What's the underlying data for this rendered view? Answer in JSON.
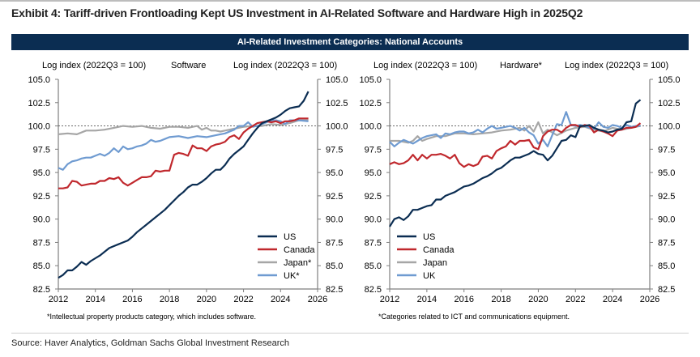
{
  "page": {
    "exhibit_title": "Exhibit 4: Tariff-driven Frontloading Kept US Investment in AI-Related Software and Hardware High in 2025Q2",
    "banner": "AI-Related Investment Categories: National Accounts",
    "source": "Source: Haver Analytics, Goldman Sachs Global Investment Research"
  },
  "colors": {
    "US": "#0b2d52",
    "Canada": "#c0282d",
    "Japan": "#a6a6a6",
    "UK": "#6f9bd1",
    "banner": "#0b2d52"
  },
  "chart_data": [
    {
      "type": "line",
      "title": "Software",
      "ylabel_left": "Log index (2022Q3 = 100)",
      "ylabel_right": "Log index (2022Q3 = 100)",
      "xlabel": "",
      "xlim": [
        2012,
        2026
      ],
      "ylim": [
        82.5,
        105.0
      ],
      "xticks": [
        "2012",
        "2014",
        "2016",
        "2018",
        "2020",
        "2022",
        "2024",
        "2026"
      ],
      "yticks": [
        "82.5",
        "85.0",
        "87.5",
        "90.0",
        "92.5",
        "95.0",
        "97.5",
        "100.0",
        "102.5",
        "105.0"
      ],
      "reference_line": 100.0,
      "legend_position": "bottom-right",
      "footnote": "*Intellectual property products category, which includes software.",
      "series": [
        {
          "name": "US",
          "legend_label": "US",
          "color": "#0b2d52",
          "x": [
            2012.0,
            2012.25,
            2012.5,
            2012.75,
            2013.0,
            2013.25,
            2013.5,
            2013.75,
            2014.0,
            2014.25,
            2014.5,
            2014.75,
            2015.0,
            2015.25,
            2015.5,
            2015.75,
            2016.0,
            2016.25,
            2016.5,
            2016.75,
            2017.0,
            2017.25,
            2017.5,
            2017.75,
            2018.0,
            2018.25,
            2018.5,
            2018.75,
            2019.0,
            2019.25,
            2019.5,
            2019.75,
            2020.0,
            2020.25,
            2020.5,
            2020.75,
            2021.0,
            2021.25,
            2021.5,
            2021.75,
            2022.0,
            2022.25,
            2022.5,
            2022.75,
            2023.0,
            2023.25,
            2023.5,
            2023.75,
            2024.0,
            2024.25,
            2024.5,
            2024.75,
            2025.0,
            2025.25,
            2025.5
          ],
          "y": [
            83.7,
            84.0,
            84.5,
            84.5,
            84.9,
            85.4,
            85.1,
            85.5,
            85.8,
            86.1,
            86.5,
            86.9,
            87.1,
            87.3,
            87.5,
            87.7,
            88.1,
            88.6,
            89.0,
            89.4,
            89.8,
            90.2,
            90.6,
            91.0,
            91.5,
            92.0,
            92.5,
            92.9,
            93.4,
            93.7,
            93.7,
            94.0,
            94.4,
            94.9,
            95.3,
            95.3,
            95.8,
            96.5,
            97.0,
            97.4,
            97.8,
            98.5,
            99.2,
            99.8,
            100.3,
            100.5,
            100.7,
            100.9,
            101.2,
            101.6,
            101.9,
            102.0,
            102.1,
            102.7,
            103.7
          ]
        },
        {
          "name": "Canada",
          "legend_label": "Canada",
          "color": "#c0282d",
          "x": [
            2012.0,
            2012.25,
            2012.5,
            2012.75,
            2013.0,
            2013.25,
            2013.5,
            2013.75,
            2014.0,
            2014.25,
            2014.5,
            2014.75,
            2015.0,
            2015.25,
            2015.5,
            2015.75,
            2016.0,
            2016.25,
            2016.5,
            2016.75,
            2017.0,
            2017.25,
            2017.5,
            2017.75,
            2018.0,
            2018.25,
            2018.5,
            2018.75,
            2019.0,
            2019.25,
            2019.5,
            2019.75,
            2020.0,
            2020.25,
            2020.5,
            2020.75,
            2021.0,
            2021.25,
            2021.5,
            2021.75,
            2022.0,
            2022.25,
            2022.5,
            2022.75,
            2023.0,
            2023.25,
            2023.5,
            2023.75,
            2024.0,
            2024.25,
            2024.5,
            2024.75,
            2025.0,
            2025.25,
            2025.5
          ],
          "y": [
            93.3,
            93.3,
            93.4,
            94.1,
            94.0,
            93.6,
            93.7,
            93.8,
            93.8,
            94.1,
            94.1,
            94.4,
            94.3,
            94.5,
            93.9,
            93.6,
            93.9,
            94.2,
            94.5,
            94.5,
            94.6,
            95.2,
            95.1,
            95.2,
            95.2,
            96.9,
            97.1,
            97.0,
            96.8,
            97.9,
            97.6,
            97.6,
            97.3,
            97.8,
            98.0,
            98.1,
            98.3,
            98.8,
            99.0,
            98.6,
            99.3,
            99.7,
            100.0,
            100.3,
            100.4,
            100.5,
            100.4,
            100.5,
            100.3,
            100.5,
            100.5,
            100.6,
            100.8,
            100.8,
            100.8
          ]
        },
        {
          "name": "Japan",
          "legend_label": "Japan*",
          "color": "#a6a6a6",
          "x": [
            2012.0,
            2012.5,
            2013.0,
            2013.5,
            2014.0,
            2014.5,
            2015.0,
            2015.5,
            2016.0,
            2016.5,
            2017.0,
            2017.5,
            2018.0,
            2018.5,
            2019.0,
            2019.5,
            2019.75,
            2020.0,
            2020.25,
            2020.5,
            2020.75,
            2021.0,
            2021.5,
            2022.0,
            2022.5,
            2023.0,
            2023.5,
            2024.0,
            2024.5,
            2025.0,
            2025.5
          ],
          "y": [
            99.1,
            99.2,
            99.1,
            99.5,
            99.5,
            99.6,
            99.8,
            100.0,
            99.9,
            100.0,
            99.8,
            99.7,
            99.9,
            99.9,
            99.8,
            100.0,
            99.6,
            99.8,
            99.5,
            99.5,
            99.4,
            99.5,
            99.7,
            99.9,
            100.0,
            100.0,
            100.2,
            100.1,
            100.3,
            100.6,
            100.6
          ]
        },
        {
          "name": "UK",
          "legend_label": "UK*",
          "color": "#6f9bd1",
          "x": [
            2012.0,
            2012.25,
            2012.5,
            2012.75,
            2013.0,
            2013.25,
            2013.5,
            2013.75,
            2014.0,
            2014.25,
            2014.5,
            2014.75,
            2015.0,
            2015.25,
            2015.5,
            2015.75,
            2016.0,
            2016.25,
            2016.5,
            2016.75,
            2017.0,
            2017.25,
            2017.5,
            2017.75,
            2018.0,
            2018.5,
            2019.0,
            2019.5,
            2020.0,
            2020.5,
            2021.0,
            2021.5,
            2021.75,
            2022.0,
            2022.25,
            2022.5,
            2022.75,
            2023.0,
            2023.5,
            2023.75,
            2024.0,
            2024.25,
            2024.5,
            2025.0,
            2025.5
          ],
          "y": [
            95.5,
            95.3,
            95.9,
            96.2,
            96.3,
            96.5,
            96.6,
            96.6,
            96.8,
            97.0,
            96.8,
            97.1,
            97.6,
            97.2,
            97.8,
            97.5,
            97.6,
            97.8,
            97.9,
            98.1,
            98.5,
            98.3,
            98.4,
            98.6,
            98.8,
            98.9,
            98.7,
            98.9,
            98.8,
            99.0,
            99.2,
            99.6,
            100.0,
            100.0,
            100.4,
            99.9,
            100.0,
            100.2,
            100.6,
            100.6,
            100.5,
            100.2,
            100.6,
            100.6,
            100.5
          ]
        }
      ]
    },
    {
      "type": "line",
      "title": "Hardware*",
      "ylabel_left": "Log index (2022Q3 = 100)",
      "ylabel_right": "Log index (2022Q3 = 100)",
      "xlabel": "",
      "xlim": [
        2012,
        2026
      ],
      "ylim": [
        82.5,
        105.0
      ],
      "xticks": [
        "2012",
        "2014",
        "2016",
        "2018",
        "2020",
        "2022",
        "2024",
        "2026"
      ],
      "yticks": [
        "82.5",
        "85.0",
        "87.5",
        "90.0",
        "92.5",
        "95.0",
        "97.5",
        "100.0",
        "102.5",
        "105.0"
      ],
      "reference_line": 100.0,
      "legend_position": "bottom-left",
      "footnote": "*Categories related to ICT and communications equipment.",
      "series": [
        {
          "name": "US",
          "legend_label": "US",
          "color": "#0b2d52",
          "x": [
            2012.0,
            2012.25,
            2012.5,
            2012.75,
            2013.0,
            2013.25,
            2013.5,
            2013.75,
            2014.0,
            2014.25,
            2014.5,
            2014.75,
            2015.0,
            2015.25,
            2015.5,
            2015.75,
            2016.0,
            2016.25,
            2016.5,
            2016.75,
            2017.0,
            2017.25,
            2017.5,
            2017.75,
            2018.0,
            2018.25,
            2018.5,
            2018.75,
            2019.0,
            2019.25,
            2019.5,
            2019.75,
            2020.0,
            2020.25,
            2020.5,
            2020.75,
            2021.0,
            2021.25,
            2021.5,
            2021.75,
            2022.0,
            2022.25,
            2022.5,
            2022.75,
            2023.0,
            2023.25,
            2023.5,
            2023.75,
            2024.0,
            2024.25,
            2024.5,
            2024.75,
            2025.0,
            2025.25,
            2025.5
          ],
          "y": [
            89.2,
            90.0,
            90.2,
            89.9,
            90.3,
            91.0,
            91.0,
            91.2,
            91.4,
            91.5,
            92.1,
            92.1,
            92.5,
            92.7,
            92.9,
            93.2,
            93.5,
            93.6,
            93.8,
            94.1,
            94.4,
            94.6,
            94.9,
            95.3,
            95.5,
            95.9,
            96.3,
            96.6,
            96.6,
            96.8,
            97.0,
            97.3,
            97.0,
            96.9,
            96.3,
            96.8,
            97.6,
            98.4,
            98.5,
            99.0,
            98.8,
            100.0,
            100.0,
            100.1,
            99.8,
            99.6,
            99.5,
            99.3,
            99.4,
            99.6,
            99.7,
            100.4,
            100.5,
            102.4,
            102.8
          ]
        },
        {
          "name": "Canada",
          "legend_label": "Canada",
          "color": "#c0282d",
          "x": [
            2012.0,
            2012.25,
            2012.5,
            2012.75,
            2013.0,
            2013.25,
            2013.5,
            2013.75,
            2014.0,
            2014.25,
            2014.5,
            2014.75,
            2015.0,
            2015.25,
            2015.5,
            2015.75,
            2016.0,
            2016.25,
            2016.5,
            2016.75,
            2017.0,
            2017.25,
            2017.5,
            2017.75,
            2018.0,
            2018.25,
            2018.5,
            2018.75,
            2019.0,
            2019.25,
            2019.5,
            2019.75,
            2020.0,
            2020.25,
            2020.5,
            2020.75,
            2021.0,
            2021.25,
            2021.5,
            2021.75,
            2022.0,
            2022.25,
            2022.5,
            2022.75,
            2023.0,
            2023.25,
            2023.5,
            2023.75,
            2024.0,
            2024.25,
            2024.5,
            2024.75,
            2025.0,
            2025.25,
            2025.5
          ],
          "y": [
            95.9,
            96.1,
            95.9,
            96.0,
            96.3,
            96.9,
            96.3,
            96.9,
            96.5,
            96.9,
            96.9,
            97.0,
            96.8,
            96.5,
            96.9,
            96.0,
            95.6,
            95.9,
            95.7,
            95.9,
            96.7,
            96.8,
            96.5,
            97.3,
            97.6,
            97.8,
            98.4,
            98.0,
            98.4,
            98.4,
            98.5,
            97.7,
            97.5,
            98.9,
            99.4,
            99.6,
            99.6,
            99.3,
            99.8,
            100.1,
            100.1,
            99.9,
            100.1,
            100.0,
            99.3,
            99.6,
            99.4,
            99.2,
            98.9,
            99.5,
            99.6,
            99.8,
            99.8,
            99.9,
            100.3
          ]
        },
        {
          "name": "Japan",
          "legend_label": "Japan",
          "color": "#a6a6a6",
          "x": [
            2012.0,
            2012.5,
            2013.0,
            2013.25,
            2013.5,
            2013.75,
            2014.0,
            2014.5,
            2015.0,
            2015.5,
            2016.0,
            2016.5,
            2017.0,
            2017.5,
            2018.0,
            2018.5,
            2019.0,
            2019.25,
            2019.5,
            2019.75,
            2020.0,
            2020.25,
            2020.5,
            2021.0,
            2021.5,
            2022.0,
            2022.5,
            2023.0,
            2023.5,
            2024.0,
            2024.5,
            2025.0,
            2025.5
          ],
          "y": [
            98.4,
            98.4,
            98.2,
            98.4,
            98.9,
            98.4,
            98.6,
            98.9,
            98.9,
            99.2,
            99.2,
            99.1,
            99.2,
            99.3,
            99.5,
            99.6,
            99.8,
            99.5,
            100.0,
            99.4,
            100.4,
            99.2,
            99.6,
            99.0,
            99.5,
            99.8,
            99.9,
            99.6,
            99.4,
            99.8,
            99.6,
            99.8,
            100.0
          ]
        },
        {
          "name": "UK",
          "legend_label": "UK",
          "color": "#6f9bd1",
          "x": [
            2012.0,
            2012.25,
            2012.5,
            2012.75,
            2013.0,
            2013.25,
            2013.5,
            2013.75,
            2014.0,
            2014.25,
            2014.5,
            2014.75,
            2015.0,
            2015.25,
            2015.5,
            2015.75,
            2016.0,
            2016.25,
            2016.5,
            2016.75,
            2017.0,
            2017.25,
            2017.5,
            2017.75,
            2018.0,
            2018.25,
            2018.5,
            2018.75,
            2019.0,
            2019.25,
            2019.5,
            2019.75,
            2020.0,
            2020.25,
            2020.5,
            2020.75,
            2021.0,
            2021.25,
            2021.5,
            2021.75,
            2022.0,
            2022.25,
            2022.5,
            2022.75,
            2023.0,
            2023.25,
            2023.5,
            2023.75,
            2024.0,
            2024.25,
            2024.5,
            2024.75,
            2025.0,
            2025.25,
            2025.5
          ],
          "y": [
            98.3,
            97.8,
            98.2,
            98.5,
            98.3,
            98.1,
            98.4,
            98.7,
            98.9,
            99.0,
            99.1,
            98.7,
            99.2,
            99.1,
            99.3,
            99.4,
            99.4,
            99.2,
            99.3,
            99.6,
            99.3,
            99.7,
            100.0,
            99.7,
            99.8,
            99.9,
            100.0,
            99.8,
            99.5,
            99.8,
            99.3,
            99.0,
            98.1,
            98.5,
            97.8,
            99.0,
            100.2,
            100.1,
            101.5,
            100.1,
            100.0,
            100.1,
            100.0,
            99.8,
            99.7,
            100.4,
            99.9,
            99.8,
            100.1,
            100.0,
            99.8,
            100.1,
            99.9,
            100.0,
            100.0
          ]
        }
      ]
    }
  ]
}
